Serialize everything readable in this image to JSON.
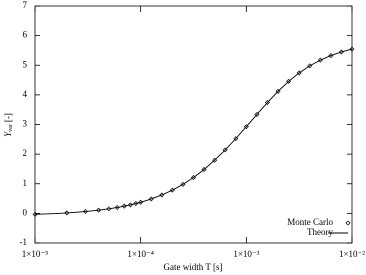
{
  "chart_data": {
    "type": "line",
    "x_label": "Gate width T [s]",
    "y_label": {
      "symbol": "Y",
      "subscript": "var",
      "unit": "[-]"
    },
    "log_x": true,
    "xlim": [
      1e-05,
      0.01
    ],
    "xticks": [
      {
        "value": 1e-05,
        "label": "1×10⁻⁵"
      },
      {
        "value": 0.0001,
        "label": "1×10⁻⁴"
      },
      {
        "value": 0.001,
        "label": "1×10⁻³"
      },
      {
        "value": 0.01,
        "label": "1×10⁻²"
      }
    ],
    "ylim": [
      -1,
      7
    ],
    "yticks": [
      -1,
      0,
      1,
      2,
      3,
      4,
      5,
      6,
      7
    ],
    "legend": "lower right",
    "series": [
      {
        "name": "Monte Carlo",
        "marker": "diamond",
        "color": "#000000",
        "x": [
          1e-05,
          2e-05,
          3e-05,
          4e-05,
          5e-05,
          6e-05,
          7e-05,
          8e-05,
          9e-05,
          0.0001,
          0.0001259,
          0.0001585,
          0.0001995,
          0.0002512,
          0.0003162,
          0.0003981,
          0.0005012,
          0.000631,
          0.0007943,
          0.001,
          0.001259,
          0.001585,
          0.001995,
          0.002512,
          0.003162,
          0.003981,
          0.005012,
          0.00631,
          0.007943,
          0.01
        ],
        "values": [
          -0.032,
          0.015,
          0.062,
          0.108,
          0.154,
          0.199,
          0.244,
          0.288,
          0.332,
          0.374,
          0.486,
          0.621,
          0.783,
          0.98,
          1.211,
          1.482,
          1.794,
          2.142,
          2.523,
          2.926,
          3.339,
          3.741,
          4.118,
          4.454,
          4.742,
          4.98,
          5.172,
          5.326,
          5.448,
          5.545
        ]
      },
      {
        "name": "Theory",
        "marker": "line",
        "color": "#000000",
        "x": [
          1e-05,
          1.259e-05,
          1.585e-05,
          1.995e-05,
          2.512e-05,
          3.162e-05,
          3.981e-05,
          5.012e-05,
          6.31e-05,
          7.943e-05,
          0.0001,
          0.0001259,
          0.0001585,
          0.0001995,
          0.0002512,
          0.0003162,
          0.0003981,
          0.0005012,
          0.000631,
          0.0007943,
          0.001,
          0.001259,
          0.001585,
          0.001995,
          0.002512,
          0.003162,
          0.003981,
          0.005012,
          0.00631,
          0.007943,
          0.01
        ],
        "values": [
          -0.032,
          -0.02,
          -0.005,
          0.015,
          0.039,
          0.069,
          0.107,
          0.154,
          0.213,
          0.285,
          0.374,
          0.486,
          0.621,
          0.783,
          0.98,
          1.211,
          1.482,
          1.794,
          2.142,
          2.523,
          2.926,
          3.339,
          3.741,
          4.118,
          4.454,
          4.742,
          4.98,
          5.172,
          5.326,
          5.448,
          5.545
        ]
      }
    ]
  }
}
